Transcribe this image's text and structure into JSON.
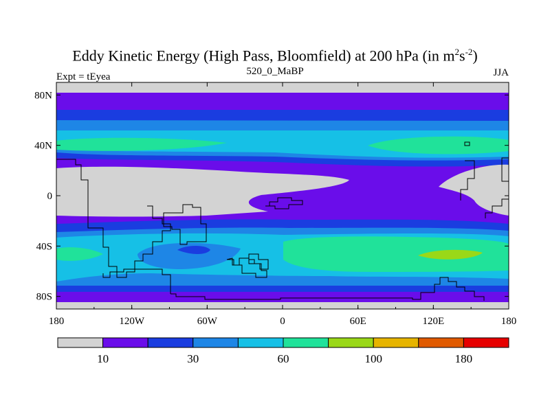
{
  "title": {
    "main": "Eddy Kinetic Energy (High Pass, Bloomfield) at 200 hPa (in m",
    "sup1": "2",
    "mid": "s",
    "sup2": "-2",
    "end": ")"
  },
  "subtitle": "520_0_MaBP",
  "left_label": "Expt = tEyea",
  "right_label": "JJA",
  "colors": {
    "levels": [
      "#d3d3d3",
      "#6a0dea",
      "#1a3de0",
      "#1e86e6",
      "#16c0e6",
      "#20e29a",
      "#9ad818",
      "#e6b400",
      "#e05a00",
      "#e60000"
    ],
    "land_outline": "#000000"
  },
  "chart_data": {
    "type": "contour-map",
    "title": "Eddy Kinetic Energy (High Pass, Bloomfield) at 200 hPa (in m2s-2)",
    "xlabel": "",
    "ylabel": "",
    "x_ticks": [
      "180",
      "120W",
      "60W",
      "0",
      "60E",
      "120E",
      "180"
    ],
    "y_ticks": [
      "80N",
      "40N",
      "0",
      "40S",
      "80S"
    ],
    "xlim": [
      -180,
      180
    ],
    "ylim": [
      -90,
      90
    ],
    "colorbar": {
      "labels": [
        "10",
        "30",
        "60",
        "100",
        "180"
      ],
      "segments": 10
    }
  }
}
